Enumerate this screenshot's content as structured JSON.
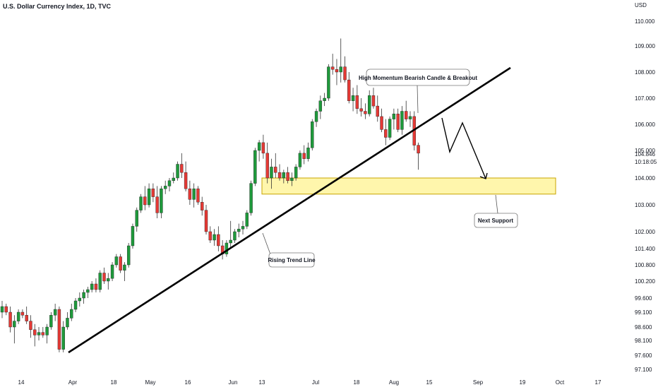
{
  "chart_data": {
    "type": "candlestick",
    "title": "U.S. Dollar Currency Index, 1D, TVC",
    "currency_label": "USD",
    "up_color": "#26a69a",
    "up_color_main": "#1e9a3b",
    "down_color": "#e53935",
    "y_ticks": [
      "110.000",
      "109.000",
      "108.000",
      "107.000",
      "106.000",
      "105.000",
      "104.000",
      "103.000",
      "102.000",
      "101.400",
      "100.800",
      "100.200",
      "99.600",
      "99.100",
      "98.600",
      "98.100",
      "97.600",
      "97.100"
    ],
    "last_price": "104.846",
    "countdown": "10:18:05",
    "x_ticks": [
      "14",
      "Apr",
      "18",
      "May",
      "16",
      "Jun",
      "13",
      "Jul",
      "18",
      "Aug",
      "15",
      "Sep",
      "19",
      "Oct",
      "17"
    ],
    "scale": "non-linear (compressed below 102.000)",
    "annotations": {
      "trend_line_label": "Rising Trend Line",
      "breakout_label": "High Momentum Bearish Candle & Breakout",
      "support_label": "Next Support"
    },
    "support_zone": [
      103.4,
      104.0
    ],
    "candles": [
      [
        99.1,
        99.5,
        98.9,
        99.3
      ],
      [
        99.3,
        99.4,
        99.0,
        99.1
      ],
      [
        99.1,
        99.3,
        98.4,
        98.6
      ],
      [
        98.6,
        99.0,
        98.0,
        98.8
      ],
      [
        98.8,
        99.2,
        98.7,
        99.1
      ],
      [
        99.1,
        99.2,
        98.9,
        99.0
      ],
      [
        99.0,
        99.3,
        98.7,
        98.8
      ],
      [
        98.8,
        99.0,
        98.2,
        98.5
      ],
      [
        98.5,
        98.7,
        97.9,
        98.3
      ],
      [
        98.3,
        98.6,
        98.1,
        98.4
      ],
      [
        98.4,
        98.6,
        98.2,
        98.3
      ],
      [
        98.3,
        98.7,
        98.0,
        98.6
      ],
      [
        98.6,
        99.1,
        98.5,
        99.0
      ],
      [
        99.0,
        99.4,
        98.8,
        99.2
      ],
      [
        99.2,
        99.3,
        97.7,
        97.8
      ],
      [
        97.8,
        98.8,
        97.7,
        98.6
      ],
      [
        98.6,
        99.1,
        98.5,
        98.9
      ],
      [
        98.9,
        99.4,
        98.8,
        99.2
      ],
      [
        99.2,
        99.6,
        99.1,
        99.5
      ],
      [
        99.5,
        99.8,
        99.3,
        99.6
      ],
      [
        99.6,
        99.9,
        99.4,
        99.8
      ],
      [
        99.8,
        100.0,
        99.6,
        99.9
      ],
      [
        99.9,
        100.2,
        99.8,
        100.1
      ],
      [
        100.1,
        100.3,
        99.8,
        99.9
      ],
      [
        99.9,
        100.6,
        99.8,
        100.5
      ],
      [
        100.5,
        100.7,
        100.1,
        100.2
      ],
      [
        100.2,
        100.5,
        99.9,
        100.3
      ],
      [
        100.3,
        100.9,
        100.2,
        100.8
      ],
      [
        100.8,
        101.2,
        100.7,
        101.1
      ],
      [
        101.1,
        101.2,
        100.5,
        100.6
      ],
      [
        100.6,
        100.9,
        100.2,
        100.8
      ],
      [
        100.8,
        101.6,
        100.7,
        101.5
      ],
      [
        101.5,
        102.3,
        101.4,
        102.2
      ],
      [
        102.2,
        102.9,
        102.0,
        102.8
      ],
      [
        102.8,
        103.4,
        102.7,
        103.3
      ],
      [
        103.3,
        103.7,
        102.8,
        103.0
      ],
      [
        103.0,
        103.8,
        102.9,
        103.6
      ],
      [
        103.6,
        103.8,
        103.1,
        103.3
      ],
      [
        103.3,
        103.7,
        102.5,
        102.7
      ],
      [
        102.7,
        103.7,
        102.5,
        103.6
      ],
      [
        103.6,
        103.9,
        103.4,
        103.7
      ],
      [
        103.7,
        104.0,
        103.5,
        103.9
      ],
      [
        103.9,
        104.2,
        103.8,
        104.0
      ],
      [
        104.0,
        104.6,
        103.9,
        104.5
      ],
      [
        104.5,
        104.9,
        104.0,
        104.2
      ],
      [
        104.2,
        104.6,
        103.5,
        103.6
      ],
      [
        103.6,
        103.9,
        103.0,
        103.2
      ],
      [
        103.2,
        103.8,
        102.9,
        103.6
      ],
      [
        103.6,
        103.7,
        103.0,
        103.1
      ],
      [
        103.1,
        103.3,
        102.6,
        102.8
      ],
      [
        102.8,
        103.0,
        101.9,
        102.0
      ],
      [
        102.0,
        102.2,
        101.6,
        101.7
      ],
      [
        101.7,
        102.1,
        101.5,
        101.9
      ],
      [
        101.9,
        102.2,
        101.3,
        101.5
      ],
      [
        101.5,
        101.7,
        101.0,
        101.2
      ],
      [
        101.2,
        101.7,
        101.1,
        101.6
      ],
      [
        101.6,
        102.4,
        101.4,
        101.7
      ],
      [
        101.7,
        102.1,
        101.6,
        102.0
      ],
      [
        102.0,
        102.3,
        101.8,
        102.1
      ],
      [
        102.1,
        102.4,
        101.9,
        102.2
      ],
      [
        102.2,
        102.8,
        102.1,
        102.7
      ],
      [
        102.7,
        103.9,
        102.6,
        103.8
      ],
      [
        103.8,
        105.1,
        103.7,
        105.0
      ],
      [
        105.0,
        105.4,
        104.6,
        105.3
      ],
      [
        105.3,
        105.6,
        104.7,
        104.9
      ],
      [
        104.9,
        105.3,
        103.8,
        104.0
      ],
      [
        104.0,
        104.7,
        103.6,
        104.4
      ],
      [
        104.4,
        104.9,
        104.0,
        104.2
      ],
      [
        104.2,
        104.5,
        103.9,
        104.0
      ],
      [
        104.0,
        104.3,
        103.8,
        104.2
      ],
      [
        104.2,
        104.4,
        103.8,
        103.9
      ],
      [
        103.9,
        104.2,
        103.7,
        104.0
      ],
      [
        104.0,
        104.5,
        103.9,
        104.4
      ],
      [
        104.4,
        105.0,
        104.3,
        104.9
      ],
      [
        104.9,
        105.2,
        104.5,
        104.7
      ],
      [
        104.7,
        105.3,
        104.6,
        105.1
      ],
      [
        105.1,
        106.2,
        105.0,
        106.1
      ],
      [
        106.1,
        106.6,
        105.9,
        106.5
      ],
      [
        106.5,
        107.1,
        106.2,
        106.9
      ],
      [
        106.9,
        107.2,
        106.7,
        107.0
      ],
      [
        107.0,
        108.3,
        106.9,
        108.2
      ],
      [
        108.2,
        108.7,
        107.9,
        108.1
      ],
      [
        108.1,
        108.5,
        107.5,
        108.0
      ],
      [
        108.0,
        109.3,
        107.6,
        108.2
      ],
      [
        108.2,
        108.6,
        107.6,
        107.7
      ],
      [
        107.7,
        108.0,
        106.8,
        106.9
      ],
      [
        106.9,
        107.4,
        106.5,
        107.1
      ],
      [
        107.1,
        107.5,
        106.4,
        106.6
      ],
      [
        106.6,
        107.0,
        106.3,
        106.5
      ],
      [
        106.5,
        106.8,
        106.2,
        106.4
      ],
      [
        106.4,
        107.3,
        106.3,
        107.1
      ],
      [
        107.1,
        107.4,
        106.6,
        106.7
      ],
      [
        106.7,
        107.1,
        106.1,
        106.3
      ],
      [
        106.3,
        106.6,
        105.7,
        105.8
      ],
      [
        105.8,
        106.2,
        105.2,
        105.5
      ],
      [
        105.5,
        106.3,
        105.4,
        106.2
      ],
      [
        106.2,
        106.6,
        105.8,
        106.4
      ],
      [
        106.4,
        106.6,
        105.7,
        105.8
      ],
      [
        105.8,
        106.7,
        105.6,
        106.5
      ],
      [
        106.5,
        106.9,
        106.1,
        106.2
      ],
      [
        106.2,
        106.5,
        105.9,
        106.3
      ],
      [
        106.3,
        106.5,
        105.0,
        105.2
      ],
      [
        105.2,
        105.3,
        104.3,
        104.9
      ]
    ]
  }
}
